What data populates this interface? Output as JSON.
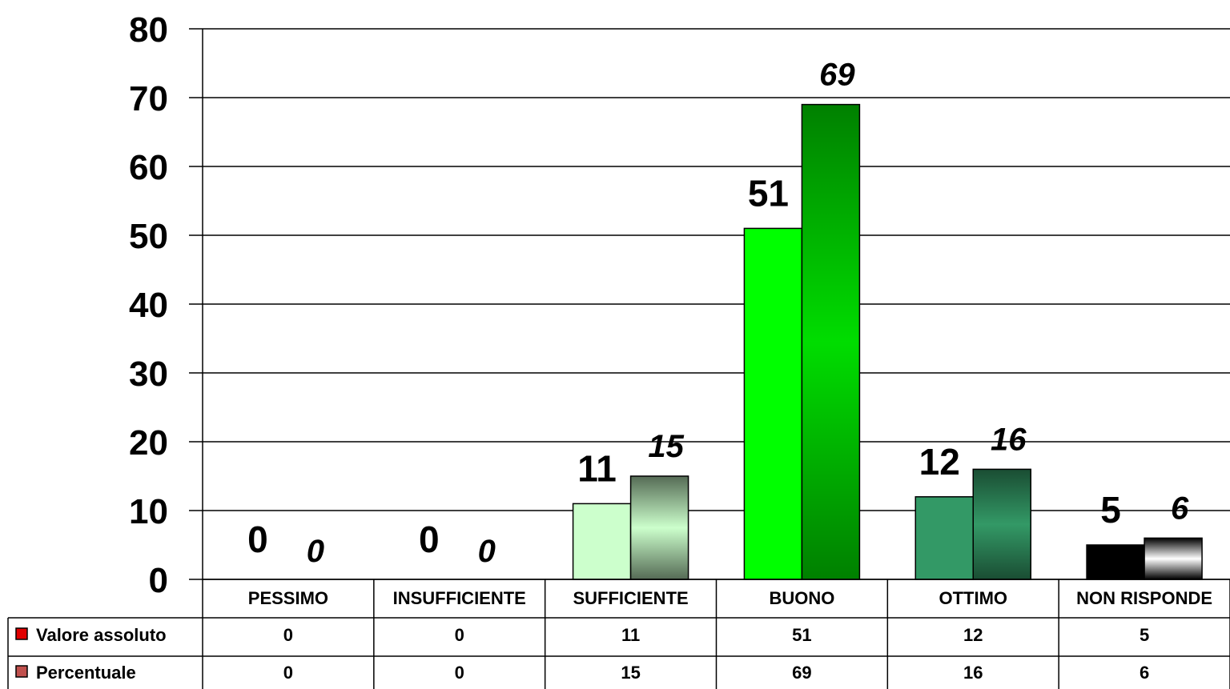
{
  "chart_data": {
    "type": "bar",
    "categories": [
      "PESSIMO",
      "INSUFFICIENTE",
      "SUFFICIENTE",
      "BUONO",
      "OTTIMO",
      "NON RISPONDE"
    ],
    "series": [
      {
        "name": "Valore assoluto",
        "values": [
          0,
          0,
          11,
          51,
          12,
          5
        ],
        "legend_color": "#e00000"
      },
      {
        "name": "Percentuale",
        "values": [
          0,
          0,
          15,
          69,
          16,
          6
        ],
        "legend_color": "#c0504d"
      }
    ],
    "ylim": [
      0,
      80
    ],
    "yticks": [
      0,
      10,
      20,
      30,
      40,
      50,
      60,
      70,
      80
    ],
    "grid": true,
    "data_table": true,
    "bar_colors": {
      "abs": [
        "#ccffcc",
        "#ccffcc",
        "#ccffcc",
        "#00ff00",
        "#339966",
        "#000000"
      ],
      "pct": [
        "#556b55",
        "#556b55",
        "#556b55",
        "#008000",
        "#1a4d33",
        "#000000"
      ],
      "pct_light": [
        "#ccffcc",
        "#ccffcc",
        "#ccffcc",
        "#00dd00",
        "#339966",
        "#ffffff"
      ]
    }
  }
}
